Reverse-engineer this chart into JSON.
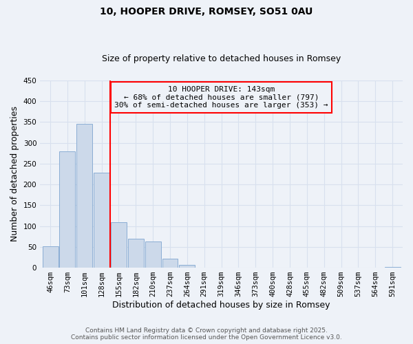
{
  "title": "10, HOOPER DRIVE, ROMSEY, SO51 0AU",
  "subtitle": "Size of property relative to detached houses in Romsey",
  "xlabel": "Distribution of detached houses by size in Romsey",
  "ylabel": "Number of detached properties",
  "categories": [
    "46sqm",
    "73sqm",
    "101sqm",
    "128sqm",
    "155sqm",
    "182sqm",
    "210sqm",
    "237sqm",
    "264sqm",
    "291sqm",
    "319sqm",
    "346sqm",
    "373sqm",
    "400sqm",
    "428sqm",
    "455sqm",
    "482sqm",
    "509sqm",
    "537sqm",
    "564sqm",
    "591sqm"
  ],
  "values": [
    52,
    280,
    345,
    228,
    110,
    70,
    63,
    22,
    6,
    0,
    0,
    0,
    0,
    0,
    0,
    0,
    0,
    0,
    0,
    0,
    2
  ],
  "bar_color": "#ccd9ea",
  "bar_edge_color": "#8aadd4",
  "ylim": [
    0,
    450
  ],
  "yticks": [
    0,
    50,
    100,
    150,
    200,
    250,
    300,
    350,
    400,
    450
  ],
  "annotation_line1": "10 HOOPER DRIVE: 143sqm",
  "annotation_line2": "← 68% of detached houses are smaller (797)",
  "annotation_line3": "30% of semi-detached houses are larger (353) →",
  "vline_after_index": 3,
  "annotation_box_color": "red",
  "background_color": "#eef2f8",
  "grid_color": "#d8e0ee",
  "footer_line1": "Contains HM Land Registry data © Crown copyright and database right 2025.",
  "footer_line2": "Contains public sector information licensed under the Open Government Licence v3.0.",
  "title_fontsize": 10,
  "subtitle_fontsize": 9,
  "axis_label_fontsize": 9,
  "tick_fontsize": 7.5,
  "annotation_fontsize": 8,
  "footer_fontsize": 6.5
}
